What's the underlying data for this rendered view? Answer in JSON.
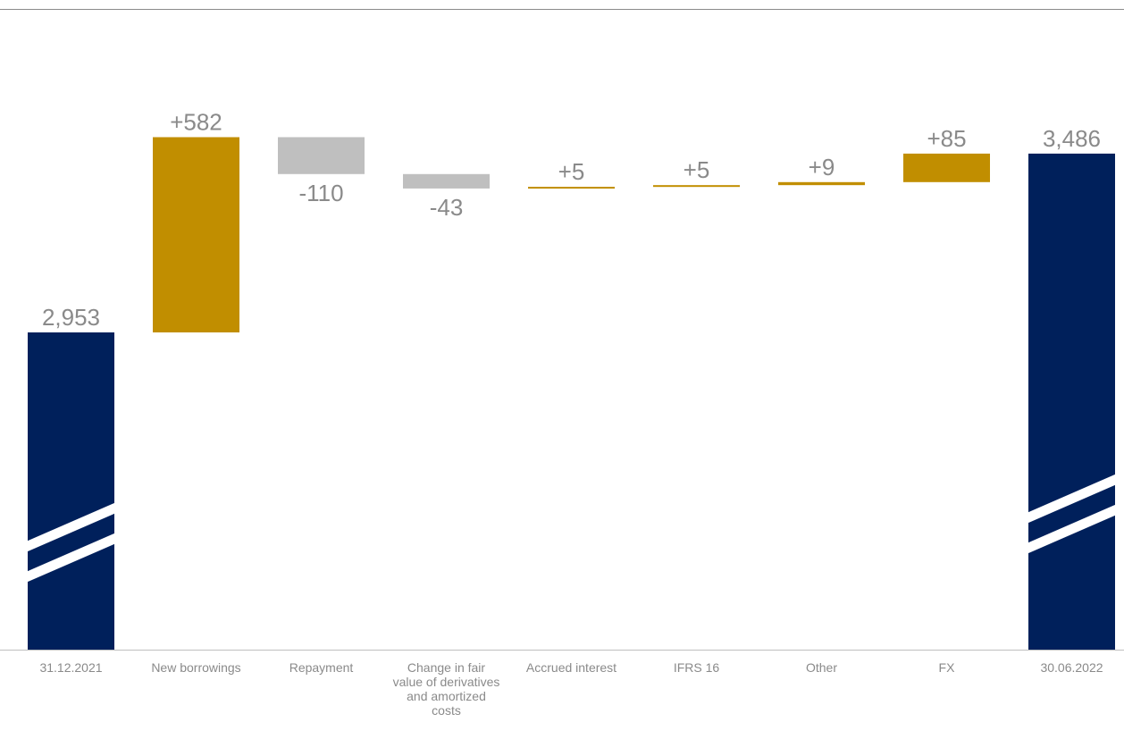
{
  "chart_data": {
    "type": "bar",
    "subtype": "waterfall",
    "categories": [
      "31.12.2021",
      "New borrowings",
      "Repayment",
      "Change in fair value of derivatives and amortized costs",
      "Accrued interest",
      "IFRS 16",
      "Other",
      "FX",
      "30.06.2022"
    ],
    "category_lines": [
      [
        "31.12.2021"
      ],
      [
        "New borrowings"
      ],
      [
        "Repayment"
      ],
      [
        "Change in fair",
        "value of derivatives",
        "and amortized",
        "costs"
      ],
      [
        "Accrued interest"
      ],
      [
        "IFRS 16"
      ],
      [
        "Other"
      ],
      [
        "FX"
      ],
      [
        "30.06.2022"
      ]
    ],
    "values": [
      2953,
      582,
      -110,
      -43,
      5,
      5,
      9,
      85,
      3486
    ],
    "kinds": [
      "total",
      "delta",
      "delta",
      "delta",
      "delta",
      "delta",
      "delta",
      "delta",
      "total"
    ],
    "data_labels": [
      "2,953",
      "+582",
      "-110",
      "-43",
      "+5",
      "+5",
      "+9",
      "+85",
      "3,486"
    ],
    "axis_break": true,
    "legend": "none",
    "grid": false,
    "colors": {
      "total": "#00205b",
      "increase": "#c18e00",
      "decrease": "#bfbfbf",
      "label": "#8a8a8a",
      "rule": "#8a8a8a"
    }
  }
}
